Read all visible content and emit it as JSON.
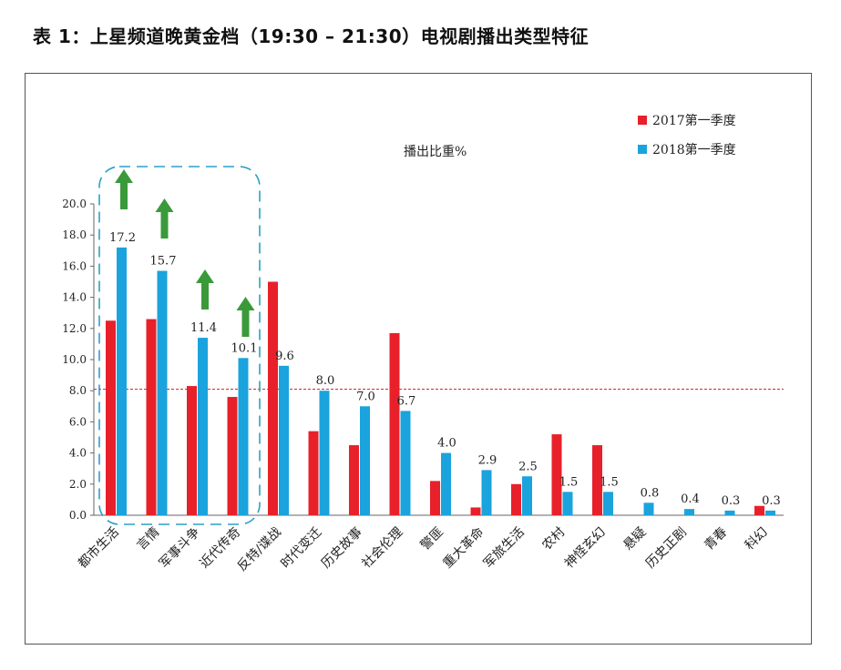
{
  "page": {
    "title": "表 1：上星频道晚黄金档（19:30 – 21:30）电视剧播出类型特征"
  },
  "chart_data": {
    "type": "bar",
    "title": "播出比重%",
    "xlabel": "",
    "ylabel": "",
    "ylim": [
      0,
      20
    ],
    "yticks": [
      "0.0",
      "2.0",
      "4.0",
      "6.0",
      "8.0",
      "10.0",
      "12.0",
      "14.0",
      "16.0",
      "18.0",
      "20.0"
    ],
    "reference_line": 8.1,
    "legend_position": "top-right",
    "categories": [
      "都市生活",
      "言情",
      "军事斗争",
      "近代传奇",
      "反特/谍战",
      "时代变迁",
      "历史故事",
      "社会伦理",
      "警匪",
      "重大革命",
      "军旅生活",
      "农村",
      "神怪玄幻",
      "悬疑",
      "历史正剧",
      "青春",
      "科幻"
    ],
    "series": [
      {
        "name": "2017第一季度",
        "color": "#e8202a",
        "values": [
          12.5,
          12.6,
          8.3,
          7.6,
          15.0,
          5.4,
          4.5,
          11.7,
          2.2,
          0.5,
          2.0,
          5.2,
          4.5,
          0,
          0,
          0,
          0.6
        ]
      },
      {
        "name": "2018第一季度",
        "color": "#1aa3dc",
        "values": [
          17.2,
          15.7,
          11.4,
          10.1,
          9.6,
          8.0,
          7.0,
          6.7,
          4.0,
          2.9,
          2.5,
          1.5,
          1.5,
          0.8,
          0.4,
          0.3,
          0.3
        ],
        "labels": [
          "17.2",
          "15.7",
          "11.4",
          "10.1",
          "9.6",
          "8.0",
          "7.0",
          "6.7",
          "4.0",
          "2.9",
          "2.5",
          "1.5",
          "1.5",
          "0.8",
          "0.4",
          "0.3",
          "0.3"
        ]
      }
    ],
    "annotations": {
      "highlight_categories": [
        "都市生活",
        "言情",
        "军事斗争",
        "近代传奇"
      ],
      "arrow_color": "#3a9a3a",
      "highlight_box_color": "#2aa0c8"
    }
  }
}
